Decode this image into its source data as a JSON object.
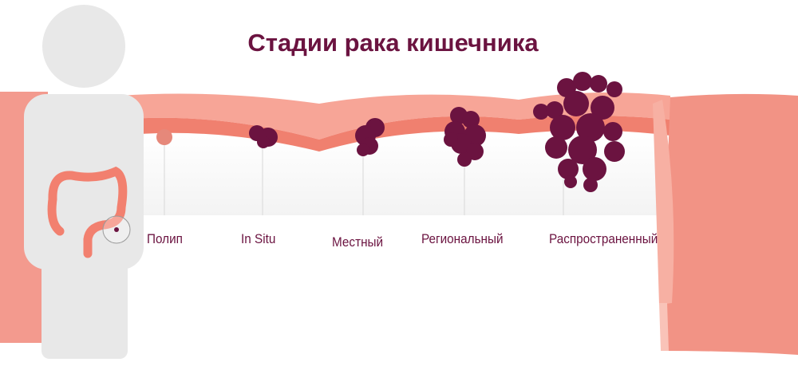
{
  "title": "Стадии рака кишечника",
  "stages": [
    {
      "label": "Полип"
    },
    {
      "label": "In Situ"
    },
    {
      "label": "Местный"
    },
    {
      "label": "Региональный"
    },
    {
      "label": "Распространенный"
    }
  ],
  "colors": {
    "tumor": "#6b1340",
    "colon": "#f28c80",
    "colon_light": "#f9b8ab",
    "figure": "#e8e8e8",
    "text": "#6b1340"
  }
}
